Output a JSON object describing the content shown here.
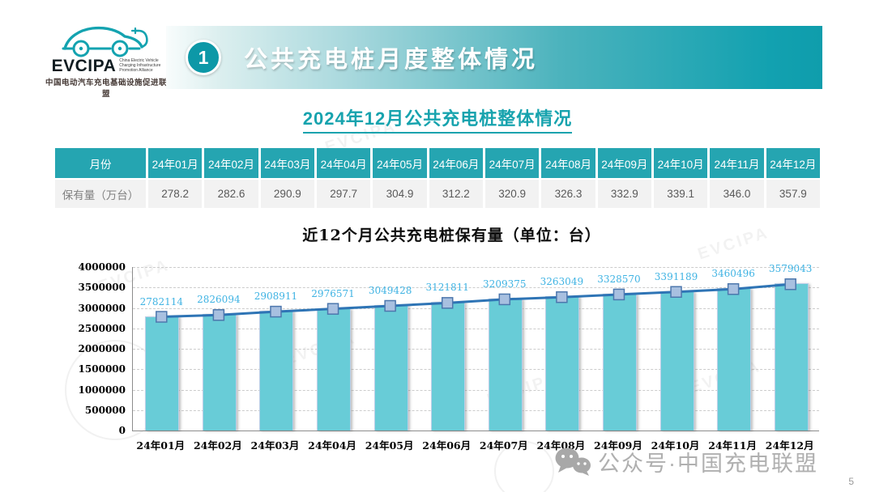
{
  "logo": {
    "brand": "EVCIPA",
    "subtitle_en": "China Electric Vehicle\nCharging Infrastructure\nPromotion Alliance",
    "subtitle_cn": "中国电动汽车充电基础设施促进联盟"
  },
  "header": {
    "section_number": "1",
    "title": "公共充电桩月度整体情况"
  },
  "subtitle": "2024年12月公共充电桩整体情况",
  "table": {
    "corner_label": "月份",
    "row_label": "保有量（万台）",
    "months": [
      "24年01月",
      "24年02月",
      "24年03月",
      "24年04月",
      "24年05月",
      "24年06月",
      "24年07月",
      "24年08月",
      "24年09月",
      "24年10月",
      "24年11月",
      "24年12月"
    ],
    "values": [
      "278.2",
      "282.6",
      "290.9",
      "297.7",
      "304.9",
      "312.2",
      "320.9",
      "326.3",
      "332.9",
      "339.1",
      "346.0",
      "357.9"
    ]
  },
  "chart_data": {
    "type": "bar",
    "overlay": "line",
    "title": "近12个月公共充电桩保有量（单位：台）",
    "categories": [
      "24年01月",
      "24年02月",
      "24年03月",
      "24年04月",
      "24年05月",
      "24年06月",
      "24年07月",
      "24年08月",
      "24年09月",
      "24年10月",
      "24年11月",
      "24年12月"
    ],
    "values": [
      2782114,
      2826094,
      2908911,
      2976571,
      3049428,
      3121811,
      3209375,
      3263049,
      3328570,
      3391189,
      3460496,
      3579043
    ],
    "xlabel": "",
    "ylabel": "",
    "ylim": [
      0,
      4000000
    ],
    "yticks": [
      0,
      500000,
      1000000,
      1500000,
      2000000,
      2500000,
      3000000,
      3500000,
      4000000
    ],
    "grid": "horizontal-dashed",
    "legend": "none",
    "colors": {
      "bar": "#68ccd7",
      "bar_border": "#bccfe8",
      "line": "#2e74b5",
      "marker_fill": "#a8c0e0",
      "marker_border": "#4d77ad",
      "value_label": "#3fb3e3"
    }
  },
  "watermark": {
    "brand_text": "EVCIPA"
  },
  "footer": {
    "watermark_text": "公众号·中国充电联盟",
    "page_number": "5"
  }
}
